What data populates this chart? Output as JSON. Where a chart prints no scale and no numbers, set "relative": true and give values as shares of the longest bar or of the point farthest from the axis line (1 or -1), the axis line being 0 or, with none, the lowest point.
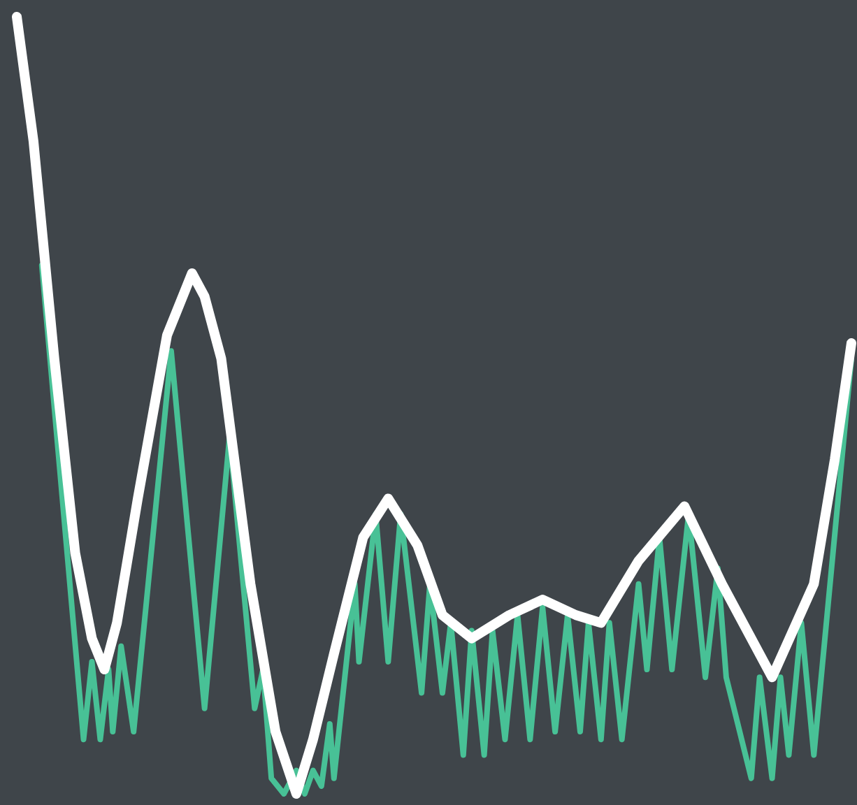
{
  "chart_data": {
    "type": "line",
    "relative": true,
    "marker": "none",
    "line_style": "solid",
    "categories": [
      null,
      null,
      null,
      null,
      null,
      null,
      null,
      null,
      null,
      null,
      null,
      null,
      null,
      null,
      null,
      null,
      null,
      null,
      null,
      null,
      null,
      null,
      null,
      null,
      null,
      null,
      null,
      null,
      null,
      null,
      null,
      null,
      null,
      null,
      null,
      null,
      null,
      null,
      null,
      null,
      null,
      null,
      null,
      null,
      null,
      null,
      null,
      null,
      null,
      null,
      null,
      null,
      null,
      null,
      null,
      null,
      null,
      null,
      null,
      null,
      null,
      null,
      null,
      null,
      null,
      null,
      null,
      null,
      null,
      null,
      null,
      null,
      null,
      null,
      null,
      null,
      null,
      null,
      null,
      null,
      null,
      null,
      null,
      null,
      null,
      null,
      null,
      null,
      null,
      null,
      null,
      null,
      null,
      null,
      null,
      null,
      null,
      null,
      null,
      null,
      null,
      null,
      null,
      null,
      null,
      null,
      null,
      null,
      null,
      null,
      null,
      null,
      null,
      null,
      null,
      null,
      null,
      null,
      null,
      null,
      null,
      null,
      null,
      null,
      null,
      null,
      null,
      null,
      null,
      null,
      null,
      null,
      null,
      null,
      null,
      null,
      null,
      null,
      null,
      null,
      null,
      null,
      null,
      null,
      null,
      null,
      null,
      null,
      null,
      null,
      null,
      null,
      null,
      null,
      null,
      null,
      null,
      null,
      null,
      null,
      null,
      null,
      null,
      null,
      null,
      null,
      null,
      null,
      null,
      null,
      null,
      null,
      null,
      null,
      null,
      null,
      null,
      null,
      null,
      null,
      null,
      null,
      null,
      null,
      null,
      null,
      null,
      null,
      null,
      null,
      null,
      null,
      null,
      null,
      null,
      null,
      null,
      null,
      null,
      null,
      null
    ],
    "series": [
      {
        "color": "#48c196",
        "values": [
          null,
          null,
          null,
          null,
          null,
          null,
          0.68,
          null,
          null,
          null,
          null,
          null,
          null,
          null,
          null,
          null,
          0.07,
          null,
          0.17,
          null,
          0.07,
          null,
          0.16,
          0.08,
          null,
          0.19,
          null,
          null,
          0.08,
          null,
          null,
          null,
          null,
          null,
          null,
          null,
          null,
          0.57,
          null,
          null,
          null,
          null,
          null,
          null,
          null,
          0.11,
          null,
          null,
          null,
          null,
          null,
          0.46,
          null,
          null,
          null,
          null,
          null,
          0.11,
          null,
          0.16,
          null,
          0.02,
          null,
          null,
          0.0,
          null,
          null,
          0.03,
          null,
          0.0,
          null,
          0.03,
          null,
          0.01,
          null,
          0.09,
          0.02,
          null,
          null,
          null,
          null,
          0.27,
          0.17,
          null,
          null,
          null,
          0.36,
          null,
          null,
          0.17,
          null,
          null,
          0.36,
          null,
          null,
          null,
          null,
          0.13,
          null,
          0.27,
          null,
          null,
          0.13,
          null,
          0.22,
          null,
          null,
          0.05,
          null,
          0.21,
          null,
          null,
          0.05,
          null,
          0.21,
          null,
          null,
          0.07,
          null,
          null,
          0.23,
          null,
          null,
          0.07,
          null,
          null,
          0.24,
          null,
          null,
          0.08,
          null,
          null,
          0.23,
          null,
          null,
          0.08,
          null,
          0.22,
          null,
          null,
          0.07,
          null,
          0.22,
          null,
          null,
          0.07,
          null,
          null,
          null,
          0.27,
          null,
          0.16,
          null,
          null,
          0.33,
          null,
          null,
          0.16,
          null,
          null,
          null,
          0.36,
          null,
          null,
          null,
          0.15,
          null,
          null,
          0.29,
          null,
          0.15,
          null,
          null,
          null,
          null,
          null,
          0.02,
          null,
          0.15,
          null,
          null,
          0.02,
          null,
          0.15,
          null,
          0.05,
          null,
          null,
          0.22,
          null,
          null,
          0.05,
          null,
          null,
          null,
          null,
          null,
          null,
          null,
          null,
          0.56
        ]
      },
      {
        "color": "#ffffff",
        "values": [
          1,
          null,
          null,
          null,
          0.84,
          null,
          null,
          null,
          null,
          0.56,
          null,
          null,
          null,
          null,
          0.31,
          null,
          null,
          null,
          0.2,
          null,
          null,
          0.16,
          null,
          null,
          0.22,
          null,
          null,
          null,
          null,
          0.38,
          null,
          null,
          null,
          null,
          null,
          null,
          0.59,
          null,
          null,
          null,
          null,
          null,
          0.67,
          null,
          null,
          0.64,
          null,
          null,
          null,
          0.56,
          null,
          null,
          null,
          null,
          null,
          null,
          0.27,
          null,
          null,
          null,
          null,
          null,
          0.08,
          null,
          null,
          null,
          null,
          0.0,
          null,
          null,
          null,
          0.07,
          null,
          null,
          null,
          null,
          0.18,
          null,
          null,
          null,
          null,
          null,
          null,
          0.33,
          null,
          null,
          null,
          null,
          null,
          0.38,
          null,
          null,
          null,
          null,
          null,
          null,
          0.32,
          null,
          null,
          null,
          null,
          null,
          0.23,
          null,
          null,
          null,
          null,
          null,
          null,
          0.2,
          null,
          null,
          null,
          null,
          null,
          null,
          null,
          null,
          0.23,
          null,
          null,
          null,
          null,
          null,
          null,
          null,
          0.25,
          null,
          null,
          null,
          null,
          null,
          null,
          null,
          0.23,
          null,
          null,
          null,
          null,
          null,
          0.22,
          null,
          null,
          null,
          null,
          null,
          null,
          null,
          null,
          0.3,
          null,
          null,
          null,
          null,
          null,
          null,
          null,
          null,
          null,
          null,
          0.37,
          null,
          null,
          null,
          null,
          null,
          null,
          null,
          null,
          0.27,
          null,
          null,
          null,
          null,
          null,
          null,
          null,
          null,
          null,
          null,
          null,
          0.15,
          null,
          null,
          null,
          null,
          null,
          null,
          null,
          null,
          null,
          0.27,
          null,
          null,
          null,
          null,
          0.43,
          null,
          null,
          null,
          0.58
        ]
      }
    ]
  }
}
